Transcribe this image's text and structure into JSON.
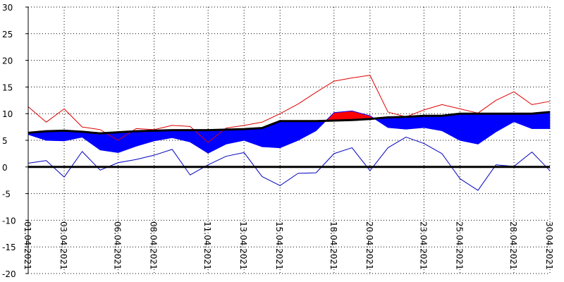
{
  "chart_data": {
    "type": "area",
    "title": "",
    "xlabel": "",
    "ylabel": "",
    "ylim": [
      -20,
      30
    ],
    "yticks": [
      -20,
      -15,
      -10,
      -5,
      0,
      5,
      10,
      15,
      20,
      25,
      30
    ],
    "grid": true,
    "legend": "none",
    "x": [
      "01.04.2021",
      "02.04.2021",
      "03.04.2021",
      "04.04.2021",
      "05.04.2021",
      "06.04.2021",
      "07.04.2021",
      "08.04.2021",
      "09.04.2021",
      "10.04.2021",
      "11.04.2021",
      "12.04.2021",
      "13.04.2021",
      "14.04.2021",
      "15.04.2021",
      "16.04.2021",
      "17.04.2021",
      "18.04.2021",
      "19.04.2021",
      "20.04.2021",
      "21.04.2021",
      "22.04.2021",
      "23.04.2021",
      "24.04.2021",
      "25.04.2021",
      "26.04.2021",
      "27.04.2021",
      "28.04.2021",
      "29.04.2021",
      "30.04.2021"
    ],
    "xtick_labels": [
      "01.04.2021",
      "03.04.2021",
      "06.04.2021",
      "08.04.2021",
      "11.04.2021",
      "13.04.2021",
      "15.04.2021",
      "18.04.2021",
      "20.04.2021",
      "23.04.2021",
      "25.04.2021",
      "28.04.2021",
      "30.04.2021"
    ],
    "series": [
      {
        "role": "max",
        "color": "#e00000",
        "values": [
          11.3,
          8.4,
          10.9,
          7.5,
          7.0,
          5.0,
          7.2,
          7.0,
          7.8,
          7.6,
          4.6,
          7.3,
          7.8,
          8.4,
          10.0,
          11.8,
          14.0,
          16.1,
          16.7,
          17.2,
          10.3,
          9.4,
          10.7,
          11.7,
          10.9,
          10.1,
          12.5,
          14.1,
          11.7,
          12.3
        ]
      },
      {
        "role": "mean",
        "color": "#0000ff",
        "values": [
          6.1,
          5.0,
          4.9,
          5.6,
          3.2,
          2.7,
          3.9,
          4.9,
          5.5,
          4.7,
          2.6,
          4.3,
          5.0,
          3.8,
          3.6,
          5.0,
          6.8,
          10.2,
          10.5,
          9.6,
          7.4,
          7.1,
          7.4,
          6.8,
          5.0,
          4.3,
          6.6,
          8.5,
          7.2,
          7.2
        ]
      },
      {
        "role": "normal",
        "color": "#000000",
        "values": [
          6.4,
          6.7,
          6.8,
          6.6,
          6.3,
          6.5,
          6.7,
          6.8,
          6.9,
          6.9,
          6.9,
          7.0,
          7.1,
          7.3,
          8.6,
          8.6,
          8.6,
          8.7,
          8.8,
          9.0,
          9.3,
          9.4,
          9.6,
          9.6,
          10.0,
          10.0,
          10.0,
          10.0,
          10.0,
          10.3
        ]
      },
      {
        "role": "min",
        "color": "#0000c0",
        "values": [
          0.7,
          1.2,
          -1.9,
          2.9,
          -0.6,
          0.8,
          1.4,
          2.2,
          3.3,
          -1.5,
          0.4,
          2.0,
          2.7,
          -1.8,
          -3.5,
          -1.2,
          -1.1,
          2.5,
          3.6,
          -0.7,
          3.6,
          5.6,
          4.4,
          2.5,
          -2.2,
          -4.4,
          0.4,
          0.1,
          2.8,
          -0.7
        ]
      }
    ],
    "colors": {
      "above_normal": "#ff0000",
      "below_normal": "#0000ff",
      "zero_line": "#000000"
    }
  }
}
